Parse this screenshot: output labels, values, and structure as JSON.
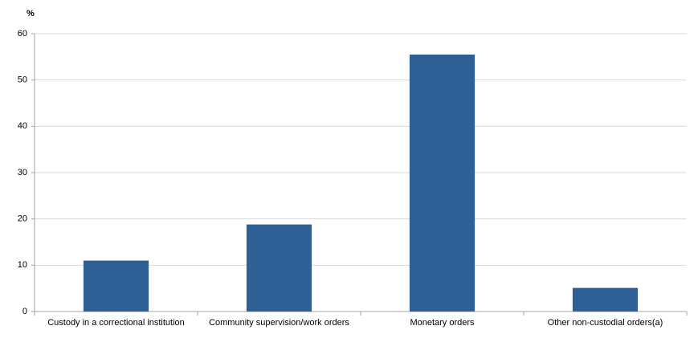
{
  "chart_data": {
    "type": "bar",
    "y_label": "%",
    "categories": [
      "Custody in a correctional institution",
      "Community supervision/work orders",
      "Monetary orders",
      "Other non-custodial orders(a)"
    ],
    "values": [
      11,
      18.8,
      55.5,
      5.1
    ],
    "color": "#2e6096",
    "ylim": [
      0,
      60
    ],
    "yticks": [
      0,
      10,
      20,
      30,
      40,
      50,
      60
    ],
    "grid": true
  }
}
